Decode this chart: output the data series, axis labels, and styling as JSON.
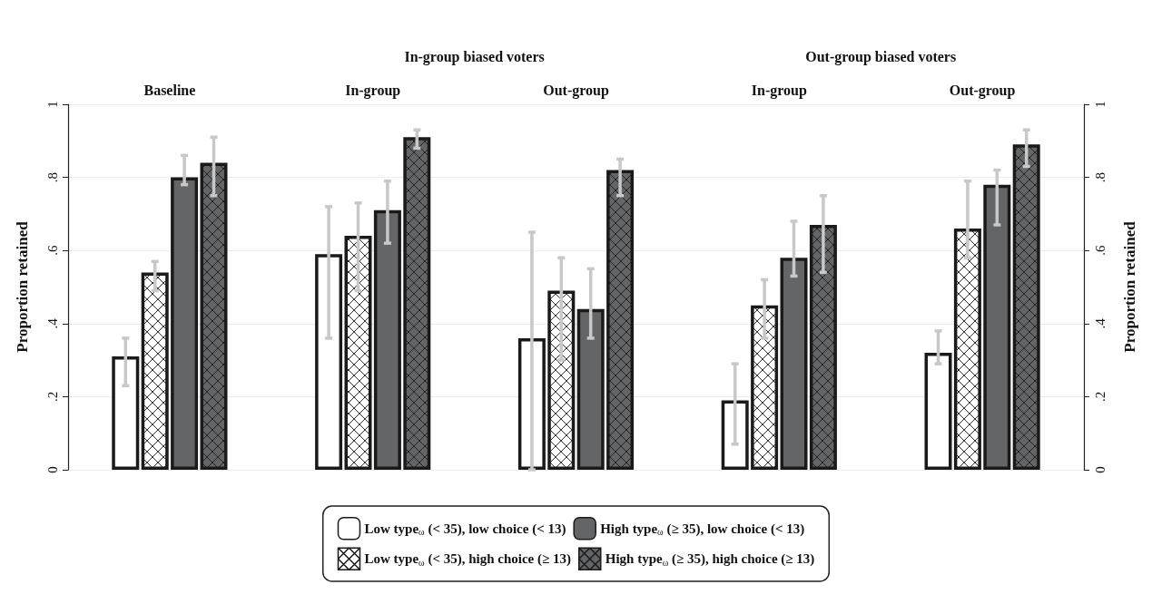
{
  "chart_data": {
    "type": "bar",
    "categories": [
      "Baseline",
      "In-group",
      "Out-group",
      "In-group",
      "Out-group"
    ],
    "annotations": [
      "In-group biased voters",
      "Out-group biased voters"
    ],
    "ylabel": "Proportion retained",
    "y2label": "Proportion retained",
    "ylim": [
      0,
      1
    ],
    "yticks": [
      0,
      {
        "value": 0.2,
        "label": ".2"
      },
      {
        "value": 0.4,
        "label": ".4"
      },
      {
        "value": 0.6,
        "label": ".6"
      },
      {
        "value": 0.8,
        "label": ".8"
      },
      1
    ],
    "y2lim": [
      0,
      1
    ],
    "y2ticks": [
      0,
      {
        "value": 0.2,
        "label": ".2"
      },
      {
        "value": 0.4,
        "label": ".4"
      },
      {
        "value": 0.6,
        "label": ".6"
      },
      {
        "value": 0.8,
        "label": ".8"
      },
      1
    ],
    "grid": "y",
    "legend": "bottom",
    "series": [
      {
        "name": "Low type$_{ω}$ (< 35), low choice (< 13)",
        "color": "#ffffff",
        "values": [
          0.31,
          0.59,
          0.36,
          0.19,
          0.32
        ],
        "errors": [
          [
            0.23,
            0.36
          ],
          [
            0.36,
            0.72
          ],
          [
            0,
            0.65
          ],
          [
            0.07,
            0.29
          ],
          [
            0.29,
            0.38
          ]
        ]
      },
      {
        "name": "Low type$_{ω}$ (< 35), high choice (≥ 13)",
        "color": "#ffffff",
        "values": [
          0.54,
          0.64,
          0.49,
          0.45,
          0.66
        ],
        "errors": [
          [
            0.49,
            0.57
          ],
          [
            0.49,
            0.73
          ],
          [
            0.3,
            0.58
          ],
          [
            0.36,
            0.52
          ],
          [
            0.58,
            0.79
          ]
        ]
      },
      {
        "name": "High type$_{ω}$ (≥ 35), low choice (< 13)",
        "color": "#646567",
        "values": [
          0.8,
          0.71,
          0.44,
          0.58,
          0.78
        ],
        "errors": [
          [
            0.78,
            0.86
          ],
          [
            0.62,
            0.79
          ],
          [
            0.36,
            0.55
          ],
          [
            0.53,
            0.68
          ],
          [
            0.67,
            0.82
          ]
        ]
      },
      {
        "name": "High type$_{ω}$ (≥ 35), high choice (≥ 13)",
        "color": "#646567",
        "values": [
          0.84,
          0.91,
          0.82,
          0.67,
          0.89
        ],
        "errors": [
          [
            0.75,
            0.91
          ],
          [
            0.88,
            0.93
          ],
          [
            0.75,
            0.85
          ],
          [
            0.54,
            0.75
          ],
          [
            0.83,
            0.93
          ]
        ]
      }
    ]
  }
}
